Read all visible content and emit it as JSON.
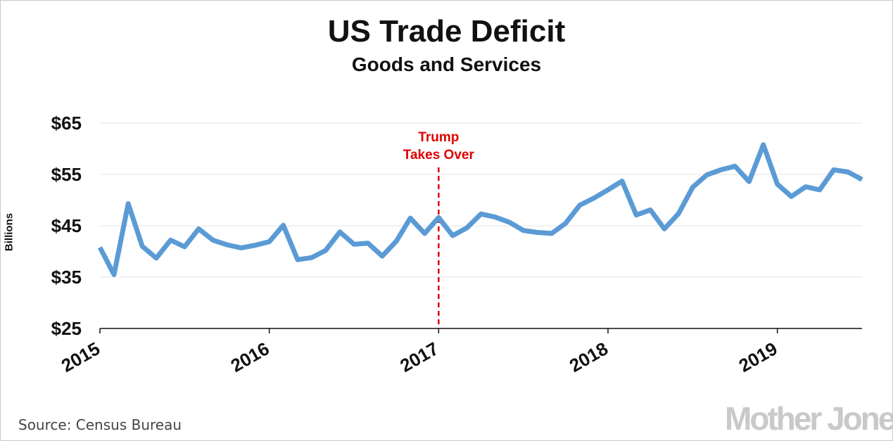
{
  "chart_data": {
    "type": "line",
    "title": "US Trade Deficit",
    "subtitle": "Goods and Services",
    "ylabel": "Billions",
    "xlabel": "",
    "ylim": [
      25,
      65
    ],
    "xlim": [
      2015.0,
      2019.5
    ],
    "y_ticks": [
      {
        "value": 65,
        "label": "$65"
      },
      {
        "value": 55,
        "label": "$55"
      },
      {
        "value": 45,
        "label": "$45"
      },
      {
        "value": 35,
        "label": "$35"
      },
      {
        "value": 25,
        "label": "$25"
      }
    ],
    "x_ticks": [
      {
        "value": 2015,
        "label": "2015"
      },
      {
        "value": 2016,
        "label": "2016"
      },
      {
        "value": 2017,
        "label": "2017"
      },
      {
        "value": 2018,
        "label": "2018"
      },
      {
        "value": 2019,
        "label": "2019"
      }
    ],
    "grid": "horizontal",
    "series": [
      {
        "color": "#5b9bd5",
        "x": [
          2015.0,
          2015.083,
          2015.167,
          2015.25,
          2015.333,
          2015.417,
          2015.5,
          2015.583,
          2015.667,
          2015.75,
          2015.833,
          2015.917,
          2016.0,
          2016.083,
          2016.167,
          2016.25,
          2016.333,
          2016.417,
          2016.5,
          2016.583,
          2016.667,
          2016.75,
          2016.833,
          2016.917,
          2017.0,
          2017.083,
          2017.167,
          2017.25,
          2017.333,
          2017.417,
          2017.5,
          2017.583,
          2017.667,
          2017.75,
          2017.833,
          2017.917,
          2018.0,
          2018.083,
          2018.167,
          2018.25,
          2018.333,
          2018.417,
          2018.5,
          2018.583,
          2018.667,
          2018.75,
          2018.833,
          2018.917,
          2019.0,
          2019.083,
          2019.167,
          2019.25,
          2019.333,
          2019.417,
          2019.5
        ],
        "values": [
          40.8,
          35.5,
          49.3,
          41.0,
          38.7,
          42.2,
          40.9,
          44.4,
          42.2,
          41.3,
          40.7,
          41.2,
          41.9,
          45.1,
          38.4,
          38.8,
          40.2,
          43.8,
          41.4,
          41.6,
          39.1,
          42.0,
          46.5,
          43.5,
          46.6,
          43.1,
          44.6,
          47.3,
          46.7,
          45.7,
          44.1,
          43.7,
          43.5,
          45.5,
          49.0,
          50.4,
          52.0,
          53.7,
          47.1,
          48.1,
          44.4,
          47.4,
          52.5,
          54.9,
          55.9,
          56.6,
          53.6,
          60.8,
          53.1,
          50.7,
          52.6,
          52.0,
          55.9,
          55.5,
          54.0
        ]
      }
    ],
    "annotations": [
      {
        "x": 2017.0,
        "lines": [
          "Trump",
          "Takes Over"
        ],
        "color": "#e00000",
        "style": "dashed-vertical"
      }
    ]
  },
  "footer": {
    "source": "Source: Census Bureau",
    "logo": "Mother Jones"
  }
}
